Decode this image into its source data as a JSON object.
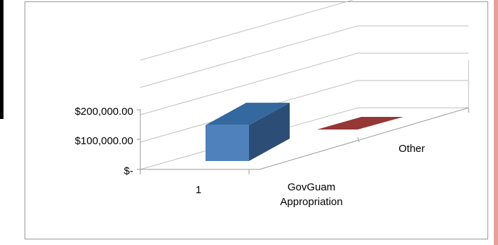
{
  "chart_data": {
    "type": "bar",
    "style": "3d-clustered-column",
    "categories": [
      "1"
    ],
    "series": [
      {
        "name": "GovGuam Appropriation",
        "values": [
          175000
        ],
        "color": "#4f81bd"
      },
      {
        "name": "Other",
        "values": [
          0
        ],
        "color": "#c0504d"
      }
    ],
    "y_ticks": [
      "$-",
      "$100,000.00",
      "$200,000.00"
    ],
    "ylim": [
      0,
      400000
    ],
    "gridlines": true,
    "legend": "none"
  },
  "colors": {
    "frame_border": "#9a9a9a",
    "gridline": "#bfbfbf",
    "bar_front": "#4f81bd",
    "bar_top": "#34699f",
    "bar_side": "#2c4d75",
    "other_fill": "#953735"
  }
}
